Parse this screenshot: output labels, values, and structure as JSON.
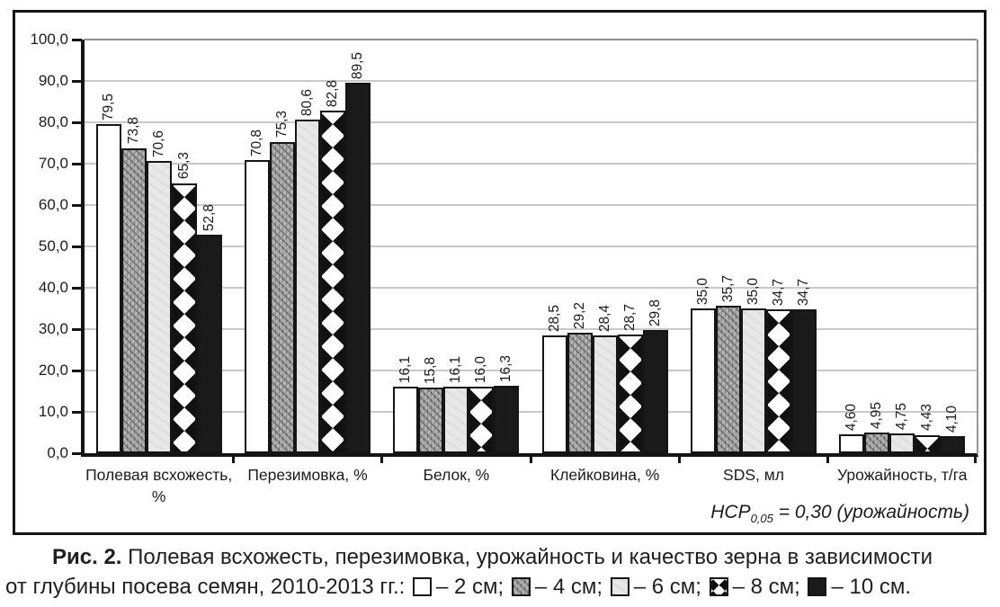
{
  "colors": {
    "ink": "#1c1c1c",
    "axis": "#151515",
    "gridline": "#c9c9c9",
    "gridline_top": "#8f8f8f",
    "bar_gray": "#a9a9a9",
    "bar_light_gray": "#e8e8e8",
    "bar_black": "#1a1a1a"
  },
  "chart_data": {
    "type": "bar",
    "title": "",
    "xlabel": "",
    "ylabel": "",
    "ylim": [
      0,
      100
    ],
    "ytick_step": 10,
    "ytick_labels": [
      "0,0",
      "10,0",
      "20,0",
      "30,0",
      "40,0",
      "50,0",
      "60,0",
      "70,0",
      "80,0",
      "90,0",
      "100,0"
    ],
    "grid": true,
    "legend_position": "in-caption-below",
    "categories": [
      "Полевая всхожесть, %",
      "Перезимовка, %",
      "Белок, %",
      "Клейковина, %",
      "SDS, мл",
      "Урожайность, т/га"
    ],
    "series": [
      {
        "name": "2 см",
        "pattern": "white",
        "values": [
          79.5,
          70.8,
          16.1,
          28.5,
          35.0,
          4.6
        ],
        "labels": [
          "79,5",
          "70,8",
          "16,1",
          "28,5",
          "35,0",
          "4,60"
        ]
      },
      {
        "name": "4 см",
        "pattern": "gray-texture",
        "values": [
          73.8,
          75.3,
          15.8,
          29.2,
          35.7,
          4.95
        ],
        "labels": [
          "73,8",
          "75,3",
          "15,8",
          "29,2",
          "35,7",
          "4,95"
        ]
      },
      {
        "name": "6 см",
        "pattern": "light-gray",
        "values": [
          70.6,
          80.6,
          16.1,
          28.4,
          35.0,
          4.75
        ],
        "labels": [
          "70,6",
          "80,6",
          "16,1",
          "28,4",
          "35,0",
          "4,75"
        ]
      },
      {
        "name": "8 см",
        "pattern": "diamonds",
        "values": [
          65.3,
          82.8,
          16.0,
          28.7,
          34.7,
          4.43
        ],
        "labels": [
          "65,3",
          "82,8",
          "16,0",
          "28,7",
          "34,7",
          "4,43"
        ]
      },
      {
        "name": "10 см",
        "pattern": "black",
        "values": [
          52.8,
          89.5,
          16.3,
          29.8,
          34.7,
          4.1
        ],
        "labels": [
          "52,8",
          "89,5",
          "16,3",
          "29,8",
          "34,7",
          "4,10"
        ]
      }
    ],
    "annotation": "НСР 0,05 = 0,30 (урожайность)"
  },
  "hcp_note": {
    "base": "НСР",
    "sub": "0,05",
    "rest": " = 0,30 (урожайность)"
  },
  "caption": {
    "prefix": "Рис. 2.",
    "line1": " Полевая всхожесть, перезимовка, урожайность и качество зерна в зависимости",
    "line2_lead": "от глубины посева семян, 2010-2013 гг.:",
    "legend": [
      {
        "pattern": "white",
        "label": "– 2 см;"
      },
      {
        "pattern": "gray-texture",
        "label": "– 4 см;"
      },
      {
        "pattern": "light-gray",
        "label": "– 6 см;"
      },
      {
        "pattern": "diamonds",
        "label": "– 8 см;"
      },
      {
        "pattern": "black",
        "label": "– 10 см."
      }
    ]
  }
}
